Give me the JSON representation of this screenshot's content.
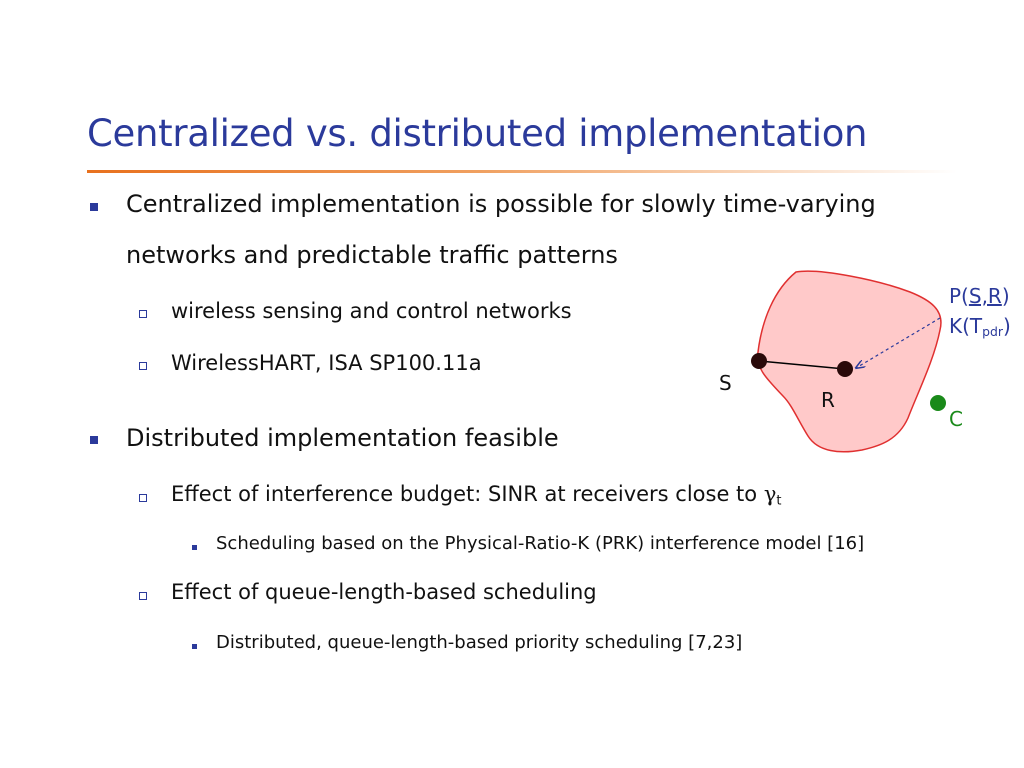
{
  "slide": {
    "title": "Centralized vs. distributed implementation",
    "bullets": {
      "b1_line1": "Centralized implementation is possible for slowly time-varying",
      "b1_line2": "networks and predictable traffic patterns",
      "b1_sub1": "wireless sensing and control networks",
      "b1_sub2": "WirelessHART, ISA SP100.11a",
      "b2": "Distributed implementation feasible",
      "b2_sub1_text": "Effect of interference budget: SINR at receivers close to ",
      "b2_sub1_symbol": "γ",
      "b2_sub1_symbol_sub": "t",
      "b2_sub1_sub1": "Scheduling based on the Physical-Ratio-K (PRK) interference model [16]",
      "b2_sub2": "Effect of queue-length-based scheduling",
      "b2_sub2_sub1": "Distributed, queue-length-based priority scheduling [7,23]"
    }
  },
  "diagram": {
    "node_s": "S",
    "node_r": "R",
    "node_c": "C",
    "label_psr_prefix": "P(",
    "label_psr_link": "S,R",
    "label_psr_suffix": ")",
    "label_k_prefix": "K(T",
    "label_k_sub": "pdr",
    "label_k_suffix": ")",
    "colors": {
      "region_fill": "#ffc9c9",
      "region_stroke": "#e03030",
      "node": "#2a0a0a",
      "node_c": "#1a8a1a",
      "arrow": "#2b3a9b"
    }
  }
}
